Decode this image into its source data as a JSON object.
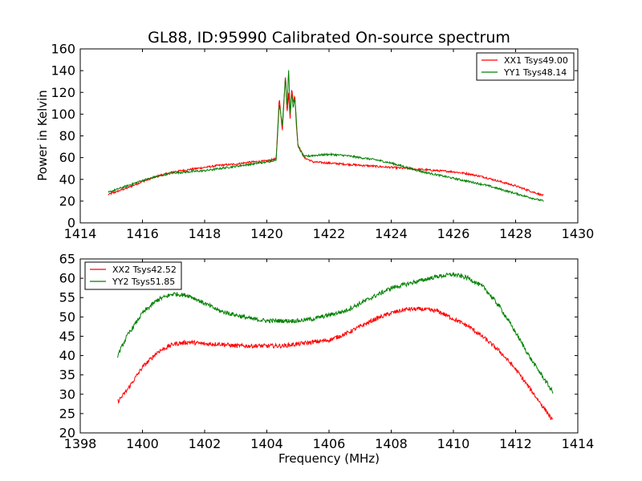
{
  "figure": {
    "title": "GL88, ID:95990 Calibrated On-source spectrum"
  },
  "chart_data": [
    {
      "type": "line",
      "title": "GL88, ID:95990 Calibrated On-source spectrum",
      "xlabel": "",
      "ylabel": "Power in Kelvin",
      "xlim": [
        1414,
        1430
      ],
      "ylim": [
        0,
        160
      ],
      "xticks": [
        1414,
        1416,
        1418,
        1420,
        1422,
        1424,
        1426,
        1428,
        1430
      ],
      "yticks": [
        0,
        20,
        40,
        60,
        80,
        100,
        120,
        140,
        160
      ],
      "grid": false,
      "legend_position": "top-right",
      "series": [
        {
          "name": "XX1 Tsys49.00",
          "color": "#ff0000",
          "x": [
            1414.9,
            1415.5,
            1416.0,
            1416.5,
            1417.0,
            1417.5,
            1418.0,
            1418.5,
            1419.0,
            1419.5,
            1420.0,
            1420.3,
            1420.4,
            1420.5,
            1420.6,
            1420.65,
            1420.7,
            1420.75,
            1420.8,
            1420.85,
            1420.9,
            1420.95,
            1421.0,
            1421.2,
            1421.5,
            1422.0,
            1422.5,
            1423.0,
            1423.5,
            1424.0,
            1424.5,
            1425.0,
            1425.5,
            1426.0,
            1426.5,
            1427.0,
            1427.5,
            1428.0,
            1428.5,
            1428.9
          ],
          "y": [
            26,
            32,
            38,
            43,
            47,
            49,
            51,
            53,
            54,
            56,
            57,
            59,
            115,
            85,
            138,
            100,
            120,
            95,
            125,
            110,
            118,
            90,
            72,
            60,
            56,
            55,
            54,
            53,
            52,
            51,
            50,
            49,
            48,
            47,
            45,
            42,
            38,
            34,
            29,
            25
          ]
        },
        {
          "name": "YY1 Tsys48.14",
          "color": "#008000",
          "x": [
            1414.9,
            1415.5,
            1416.0,
            1416.5,
            1417.0,
            1417.5,
            1418.0,
            1418.5,
            1419.0,
            1419.5,
            1420.0,
            1420.3,
            1420.4,
            1420.5,
            1420.6,
            1420.65,
            1420.7,
            1420.75,
            1420.8,
            1420.85,
            1420.9,
            1420.95,
            1421.0,
            1421.2,
            1421.5,
            1422.0,
            1422.5,
            1423.0,
            1423.5,
            1424.0,
            1424.5,
            1425.0,
            1425.5,
            1426.0,
            1426.5,
            1427.0,
            1427.5,
            1428.0,
            1428.5,
            1428.9
          ],
          "y": [
            28,
            34,
            39,
            43,
            46,
            47,
            48,
            50,
            52,
            54,
            56,
            58,
            110,
            90,
            135,
            105,
            143,
            100,
            120,
            105,
            115,
            95,
            70,
            61,
            62,
            63,
            62,
            60,
            58,
            55,
            51,
            47,
            44,
            41,
            38,
            35,
            31,
            27,
            23,
            20
          ]
        }
      ]
    },
    {
      "type": "line",
      "title": "",
      "xlabel": "Frequency (MHz)",
      "ylabel": "",
      "xlim": [
        1398,
        1414
      ],
      "ylim": [
        20,
        65
      ],
      "xticks": [
        1398,
        1400,
        1402,
        1404,
        1406,
        1408,
        1410,
        1412,
        1414
      ],
      "yticks": [
        20,
        25,
        30,
        35,
        40,
        45,
        50,
        55,
        60,
        65
      ],
      "grid": false,
      "legend_position": "top-left",
      "series": [
        {
          "name": "XX2 Tsys42.52",
          "color": "#ff0000",
          "x": [
            1399.2,
            1399.5,
            1400.0,
            1400.5,
            1401.0,
            1401.5,
            1402.0,
            1402.5,
            1403.0,
            1403.5,
            1404.0,
            1404.5,
            1405.0,
            1405.5,
            1406.0,
            1406.5,
            1407.0,
            1407.5,
            1408.0,
            1408.5,
            1409.0,
            1409.5,
            1410.0,
            1410.5,
            1411.0,
            1411.5,
            1412.0,
            1412.5,
            1413.0,
            1413.2
          ],
          "y": [
            28,
            31,
            37,
            41,
            43,
            43.5,
            43,
            43,
            42.5,
            42.5,
            42.5,
            42.5,
            43,
            43.5,
            44,
            45.5,
            47.5,
            49.5,
            51,
            52,
            52,
            51.5,
            49.5,
            47.5,
            44.5,
            41,
            36.5,
            31,
            25.5,
            23
          ]
        },
        {
          "name": "YY2 Tsys51.85",
          "color": "#008000",
          "x": [
            1399.2,
            1399.5,
            1400.0,
            1400.5,
            1401.0,
            1401.5,
            1402.0,
            1402.5,
            1403.0,
            1403.5,
            1404.0,
            1404.5,
            1405.0,
            1405.5,
            1406.0,
            1406.5,
            1407.0,
            1407.5,
            1408.0,
            1408.5,
            1409.0,
            1409.5,
            1410.0,
            1410.5,
            1411.0,
            1411.5,
            1412.0,
            1412.5,
            1413.0,
            1413.2
          ],
          "y": [
            40,
            45,
            51,
            54.5,
            56,
            55.5,
            53.5,
            51.5,
            50.5,
            49.5,
            49,
            49,
            49,
            49.5,
            50.5,
            51.5,
            53.5,
            55.5,
            57.5,
            58.5,
            59.5,
            60.5,
            61,
            60,
            57.5,
            52.5,
            46,
            39,
            33,
            30.5
          ]
        }
      ]
    }
  ]
}
